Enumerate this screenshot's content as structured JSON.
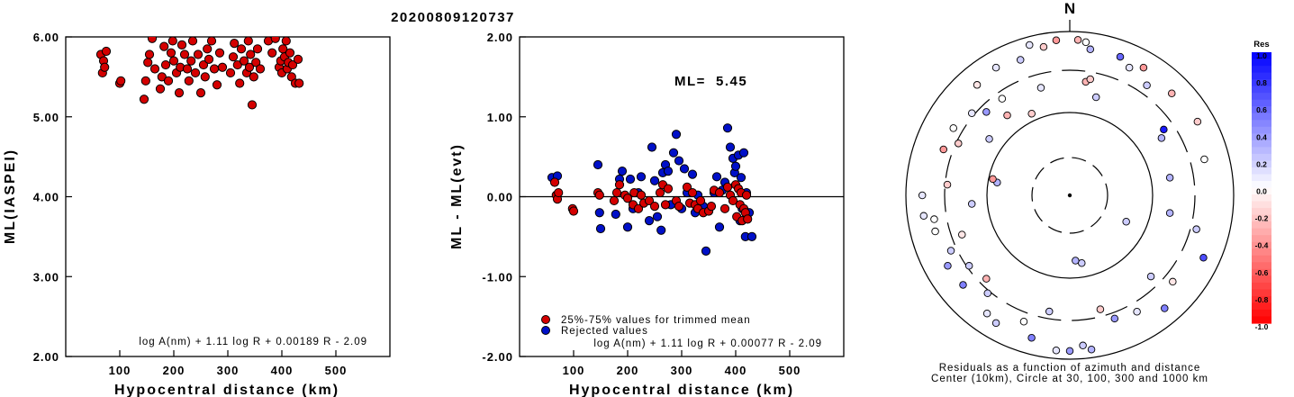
{
  "event_id": "20200809120737",
  "chart_data": [
    {
      "type": "scatter",
      "xlabel": "Hypocentral distance (km)",
      "ylabel": "ML(IASPEI)",
      "xlim": [
        0,
        600
      ],
      "ylim": [
        2.0,
        6.0
      ],
      "xticks": [
        "100",
        "200",
        "300",
        "400",
        "500"
      ],
      "yticks": [
        "2.00",
        "3.00",
        "4.00",
        "5.00",
        "6.00"
      ],
      "formula": "log A(nm) + 1.11 log R + 0.00189 R - 2.09",
      "colors": {
        "point": "#d40000"
      },
      "points": [
        [
          65,
          5.78
        ],
        [
          68,
          5.55
        ],
        [
          70,
          5.7
        ],
        [
          72,
          5.62
        ],
        [
          75,
          5.82
        ],
        [
          100,
          5.42
        ],
        [
          102,
          5.45
        ],
        [
          145,
          5.22
        ],
        [
          148,
          5.45
        ],
        [
          152,
          5.68
        ],
        [
          155,
          5.78
        ],
        [
          160,
          5.98
        ],
        [
          165,
          5.6
        ],
        [
          175,
          5.35
        ],
        [
          178,
          5.5
        ],
        [
          182,
          5.88
        ],
        [
          185,
          5.65
        ],
        [
          190,
          5.45
        ],
        [
          195,
          5.8
        ],
        [
          198,
          5.95
        ],
        [
          200,
          5.7
        ],
        [
          205,
          5.55
        ],
        [
          210,
          5.3
        ],
        [
          212,
          5.62
        ],
        [
          215,
          5.9
        ],
        [
          220,
          5.78
        ],
        [
          225,
          5.6
        ],
        [
          228,
          5.45
        ],
        [
          232,
          5.7
        ],
        [
          235,
          5.95
        ],
        [
          240,
          5.55
        ],
        [
          245,
          5.78
        ],
        [
          250,
          5.3
        ],
        [
          255,
          5.65
        ],
        [
          258,
          5.5
        ],
        [
          262,
          5.85
        ],
        [
          265,
          5.72
        ],
        [
          270,
          5.95
        ],
        [
          275,
          5.6
        ],
        [
          280,
          5.4
        ],
        [
          285,
          5.8
        ],
        [
          290,
          5.62
        ],
        [
          305,
          5.55
        ],
        [
          310,
          5.75
        ],
        [
          312,
          5.92
        ],
        [
          318,
          5.65
        ],
        [
          322,
          5.42
        ],
        [
          325,
          5.85
        ],
        [
          330,
          5.7
        ],
        [
          335,
          5.55
        ],
        [
          338,
          5.95
        ],
        [
          340,
          5.62
        ],
        [
          342,
          5.78
        ],
        [
          345,
          5.15
        ],
        [
          348,
          5.5
        ],
        [
          352,
          5.68
        ],
        [
          355,
          5.85
        ],
        [
          360,
          5.6
        ],
        [
          375,
          5.95
        ],
        [
          382,
          5.8
        ],
        [
          388,
          5.98
        ],
        [
          395,
          5.62
        ],
        [
          398,
          5.7
        ],
        [
          400,
          5.55
        ],
        [
          402,
          5.85
        ],
        [
          405,
          5.75
        ],
        [
          408,
          5.95
        ],
        [
          410,
          5.6
        ],
        [
          412,
          5.68
        ],
        [
          415,
          5.8
        ],
        [
          418,
          5.5
        ],
        [
          420,
          5.65
        ],
        [
          425,
          5.42
        ],
        [
          430,
          5.72
        ],
        [
          432,
          5.42
        ]
      ]
    },
    {
      "type": "scatter",
      "xlabel": "Hypocentral distance (km)",
      "ylabel": "ML - ML(evt)",
      "xlim": [
        0,
        600
      ],
      "ylim": [
        -2.0,
        2.0
      ],
      "xticks": [
        "100",
        "200",
        "300",
        "400",
        "500"
      ],
      "yticks": [
        "-2.00",
        "-1.00",
        "0.00",
        "1.00",
        "2.00"
      ],
      "ml_label": "ML=",
      "ml_value": "5.45",
      "formula": "log A(nm) + 1.11 log R + 0.00077 R - 2.09",
      "legend": [
        "25%-75% values for trimmed mean",
        "Rejected values"
      ],
      "colors": {
        "used": "#d40000",
        "rejected": "#0010c8"
      },
      "used": [
        [
          65,
          0.18
        ],
        [
          68,
          0.02
        ],
        [
          70,
          -0.03
        ],
        [
          72,
          0.05
        ],
        [
          98,
          -0.15
        ],
        [
          100,
          -0.18
        ],
        [
          145,
          0.05
        ],
        [
          148,
          0.02
        ],
        [
          175,
          -0.05
        ],
        [
          180,
          0.05
        ],
        [
          185,
          0.15
        ],
        [
          195,
          0.02
        ],
        [
          200,
          -0.02
        ],
        [
          210,
          -0.1
        ],
        [
          212,
          0.05
        ],
        [
          220,
          -0.15
        ],
        [
          225,
          0.02
        ],
        [
          230,
          -0.08
        ],
        [
          240,
          -0.05
        ],
        [
          250,
          -0.12
        ],
        [
          260,
          0.05
        ],
        [
          265,
          0.15
        ],
        [
          270,
          -0.1
        ],
        [
          275,
          0.1
        ],
        [
          290,
          -0.05
        ],
        [
          295,
          -0.12
        ],
        [
          310,
          0.12
        ],
        [
          315,
          -0.08
        ],
        [
          320,
          0.05
        ],
        [
          325,
          -0.1
        ],
        [
          330,
          -0.15
        ],
        [
          335,
          -0.05
        ],
        [
          340,
          -0.2
        ],
        [
          350,
          -0.18
        ],
        [
          355,
          -0.12
        ],
        [
          360,
          0.08
        ],
        [
          370,
          0.05
        ],
        [
          380,
          -0.15
        ],
        [
          385,
          0.12
        ],
        [
          390,
          0.02
        ],
        [
          395,
          -0.05
        ],
        [
          400,
          0.15
        ],
        [
          402,
          -0.25
        ],
        [
          405,
          0.1
        ],
        [
          408,
          -0.1
        ],
        [
          410,
          0.05
        ],
        [
          412,
          -0.3
        ],
        [
          415,
          -0.15
        ],
        [
          418,
          -0.2
        ],
        [
          420,
          0.02
        ],
        [
          422,
          -0.28
        ]
      ],
      "rejected": [
        [
          60,
          0.24
        ],
        [
          70,
          0.26
        ],
        [
          145,
          0.4
        ],
        [
          148,
          -0.2
        ],
        [
          150,
          -0.4
        ],
        [
          178,
          -0.22
        ],
        [
          185,
          0.22
        ],
        [
          190,
          0.32
        ],
        [
          200,
          -0.38
        ],
        [
          205,
          0.22
        ],
        [
          210,
          -0.15
        ],
        [
          220,
          0.05
        ],
        [
          225,
          0.25
        ],
        [
          240,
          -0.3
        ],
        [
          245,
          0.62
        ],
        [
          250,
          0.2
        ],
        [
          255,
          -0.25
        ],
        [
          262,
          -0.42
        ],
        [
          265,
          0.3
        ],
        [
          270,
          0.4
        ],
        [
          275,
          0.32
        ],
        [
          280,
          -0.1
        ],
        [
          285,
          0.55
        ],
        [
          290,
          0.78
        ],
        [
          295,
          0.45
        ],
        [
          300,
          -0.15
        ],
        [
          305,
          0.35
        ],
        [
          310,
          0.05
        ],
        [
          320,
          0.28
        ],
        [
          325,
          -0.2
        ],
        [
          330,
          0.02
        ],
        [
          340,
          -0.12
        ],
        [
          345,
          -0.68
        ],
        [
          350,
          -0.18
        ],
        [
          360,
          0.05
        ],
        [
          365,
          0.25
        ],
        [
          370,
          -0.38
        ],
        [
          375,
          0.08
        ],
        [
          380,
          0.18
        ],
        [
          385,
          0.86
        ],
        [
          390,
          0.62
        ],
        [
          395,
          0.48
        ],
        [
          398,
          0.3
        ],
        [
          400,
          0.38
        ],
        [
          405,
          0.52
        ],
        [
          408,
          -0.3
        ],
        [
          410,
          0.24
        ],
        [
          412,
          -0.15
        ],
        [
          415,
          0.55
        ],
        [
          418,
          -0.5
        ],
        [
          420,
          0.05
        ],
        [
          425,
          -0.2
        ],
        [
          430,
          -0.5
        ]
      ]
    },
    {
      "type": "polar-scatter",
      "north_label": "N",
      "caption_line1": "Residuals as a function of azimuth and distance",
      "caption_line2": "Center (10km), Circle at 30, 100, 300 and 1000 km",
      "colorbar_title": "Res",
      "colorbar_ticks": [
        "1.0",
        "0.8",
        "0.6",
        "0.4",
        "0.2",
        "0.0",
        "-0.2",
        "-0.4",
        "-0.6",
        "-0.8",
        "-1.0"
      ],
      "stations": [
        [
          3,
          0.95,
          -0.3
        ],
        [
          6,
          0.94,
          0.0
        ],
        [
          8,
          0.9,
          0.3
        ],
        [
          350,
          0.92,
          -0.2
        ],
        [
          355,
          0.95,
          -0.4
        ],
        [
          345,
          0.95,
          0.1
        ],
        [
          340,
          0.88,
          0.2
        ],
        [
          330,
          0.9,
          0.1
        ],
        [
          320,
          0.88,
          -0.1
        ],
        [
          20,
          0.9,
          0.6
        ],
        [
          25,
          0.86,
          0.1
        ],
        [
          30,
          0.9,
          -0.4
        ],
        [
          35,
          0.82,
          0.2
        ],
        [
          45,
          0.88,
          -0.3
        ],
        [
          55,
          0.7,
          0.9
        ],
        [
          58,
          0.66,
          0.3
        ],
        [
          60,
          0.9,
          -0.2
        ],
        [
          75,
          0.85,
          0.0
        ],
        [
          80,
          0.62,
          0.3
        ],
        [
          100,
          0.62,
          0.3
        ],
        [
          105,
          0.8,
          0.2
        ],
        [
          115,
          0.9,
          0.7
        ],
        [
          130,
          0.82,
          -0.1
        ],
        [
          135,
          0.7,
          0.2
        ],
        [
          140,
          0.9,
          0.5
        ],
        [
          150,
          0.82,
          0.1
        ],
        [
          160,
          0.8,
          0.4
        ],
        [
          165,
          0.72,
          -0.2
        ],
        [
          172,
          0.95,
          0.3
        ],
        [
          175,
          0.92,
          0.2
        ],
        [
          180,
          0.95,
          0.4
        ],
        [
          185,
          0.95,
          0.1
        ],
        [
          190,
          0.72,
          0.2
        ],
        [
          195,
          0.9,
          0.5
        ],
        [
          200,
          0.82,
          0.0
        ],
        [
          210,
          0.9,
          0.2
        ],
        [
          215,
          0.88,
          0.1
        ],
        [
          220,
          0.78,
          0.2
        ],
        [
          225,
          0.72,
          -0.3
        ],
        [
          230,
          0.85,
          0.5
        ],
        [
          235,
          0.75,
          0.2
        ],
        [
          240,
          0.86,
          0.4
        ],
        [
          245,
          0.8,
          0.2
        ],
        [
          250,
          0.7,
          -0.1
        ],
        [
          255,
          0.85,
          0.0
        ],
        [
          260,
          0.84,
          0.0
        ],
        [
          262,
          0.9,
          0.1
        ],
        [
          265,
          0.6,
          0.2
        ],
        [
          270,
          0.9,
          0.1
        ],
        [
          275,
          0.75,
          -0.2
        ],
        [
          290,
          0.82,
          -0.4
        ],
        [
          295,
          0.75,
          -0.2
        ],
        [
          300,
          0.82,
          0.0
        ],
        [
          305,
          0.6,
          0.2
        ],
        [
          310,
          0.78,
          0.1
        ],
        [
          315,
          0.72,
          0.4
        ],
        [
          322,
          0.62,
          -0.3
        ],
        [
          325,
          0.72,
          0.0
        ],
        [
          335,
          0.55,
          -0.2
        ],
        [
          8,
          0.7,
          -0.3
        ],
        [
          10,
          0.72,
          -0.2
        ],
        [
          15,
          0.62,
          0.2
        ],
        [
          345,
          0.68,
          0.1
        ],
        [
          115,
          0.38,
          0.2
        ],
        [
          170,
          0.42,
          0.2
        ],
        [
          175,
          0.4,
          0.3
        ],
        [
          280,
          0.45,
          0.3
        ],
        [
          282,
          0.48,
          -0.4
        ]
      ]
    }
  ]
}
